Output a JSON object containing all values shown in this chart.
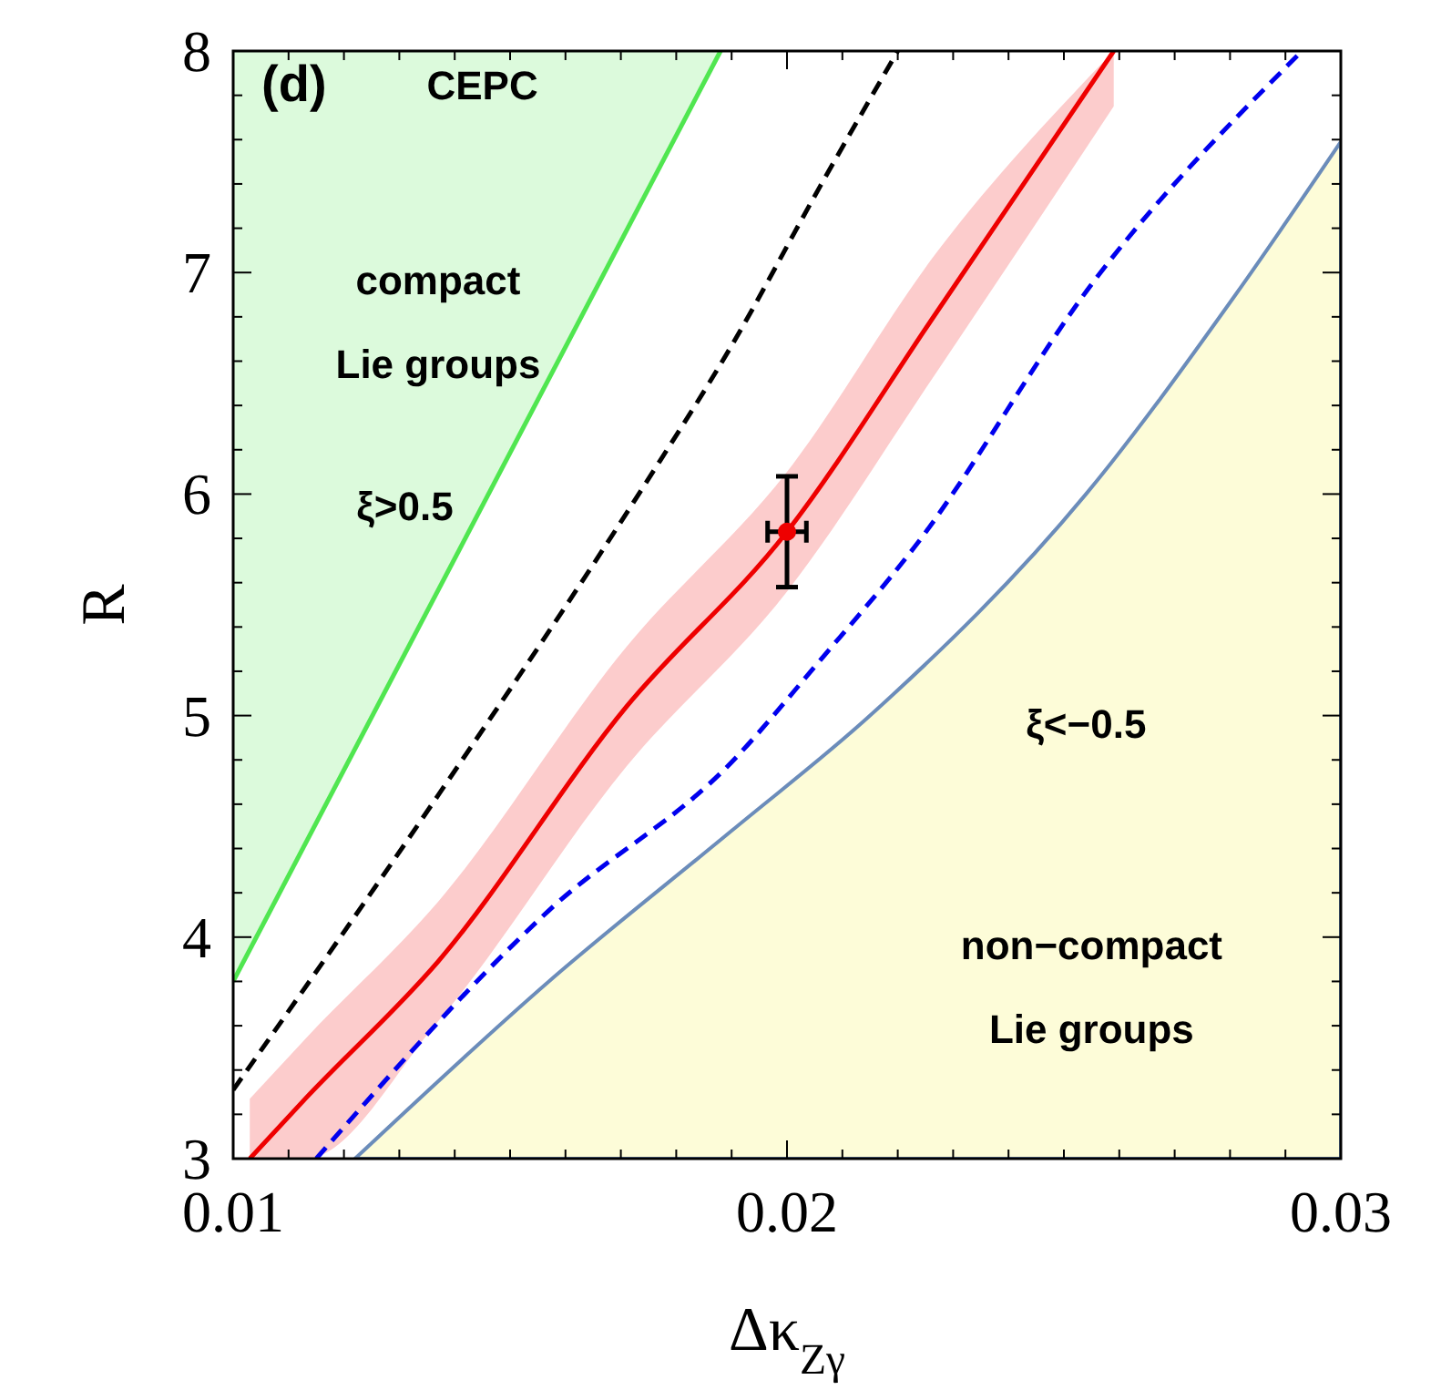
{
  "chart_data": {
    "type": "line",
    "xlabel": "Δκ$_{Zγ}$",
    "ylabel": "R",
    "xlim": [
      0.01,
      0.03
    ],
    "ylim": [
      3,
      8
    ],
    "xticks": [
      0.01,
      {
        "value": 0.011,
        "label": null
      },
      {
        "value": 0.012,
        "label": null
      },
      {
        "value": 0.013,
        "label": null
      },
      {
        "value": 0.014,
        "label": null
      },
      {
        "value": 0.015,
        "label": null
      },
      {
        "value": 0.016,
        "label": null
      },
      {
        "value": 0.017,
        "label": null
      },
      {
        "value": 0.018,
        "label": null
      },
      {
        "value": 0.019,
        "label": null
      },
      0.02,
      {
        "value": 0.021,
        "label": null
      },
      {
        "value": 0.022,
        "label": null
      },
      {
        "value": 0.023,
        "label": null
      },
      {
        "value": 0.024,
        "label": null
      },
      {
        "value": 0.025,
        "label": null
      },
      {
        "value": 0.026,
        "label": null
      },
      {
        "value": 0.027,
        "label": null
      },
      {
        "value": 0.028,
        "label": null
      },
      {
        "value": 0.029,
        "label": null
      },
      0.03
    ],
    "yticks": [
      3,
      {
        "value": 3.2,
        "label": null
      },
      {
        "value": 3.4,
        "label": null
      },
      {
        "value": 3.6,
        "label": null
      },
      {
        "value": 3.8,
        "label": null
      },
      4,
      {
        "value": 4.2,
        "label": null
      },
      {
        "value": 4.4,
        "label": null
      },
      {
        "value": 4.6,
        "label": null
      },
      {
        "value": 4.8,
        "label": null
      },
      5,
      {
        "value": 5.2,
        "label": null
      },
      {
        "value": 5.4,
        "label": null
      },
      {
        "value": 5.6,
        "label": null
      },
      {
        "value": 5.8,
        "label": null
      },
      6,
      {
        "value": 6.2,
        "label": null
      },
      {
        "value": 6.4,
        "label": null
      },
      {
        "value": 6.6,
        "label": null
      },
      {
        "value": 6.8,
        "label": null
      },
      7,
      {
        "value": 7.2,
        "label": null
      },
      {
        "value": 7.4,
        "label": null
      },
      {
        "value": 7.6,
        "label": null
      },
      {
        "value": 7.8,
        "label": null
      },
      8
    ],
    "series": [
      {
        "color": "#50e650",
        "line_style": "solid",
        "x": [
          0.01,
          0.0188
        ],
        "values": [
          3.8,
          8
        ],
        "lower": [
          3.8,
          8
        ],
        "upper": [
          8,
          8
        ]
      },
      {
        "type": "area",
        "color": "#fdfcd8",
        "line_style": "solid",
        "x": [
          0.0122,
          0.0157,
          0.019,
          0.0215,
          0.0254,
          0.0281,
          0.03
        ],
        "values": [
          3,
          3.8,
          4.48,
          5.0,
          6.0,
          6.9,
          7.59
        ]
      },
      {
        "color": "#000000",
        "line_style": "dashed",
        "x": [
          0.01,
          0.0137,
          0.0174,
          0.019,
          0.0206,
          0.022
        ],
        "values": [
          3.31,
          4.64,
          6.03,
          6.67,
          7.39,
          8
        ]
      },
      {
        "color": "#0000ee",
        "line_style": "dashed",
        "x": [
          0.0115,
          0.0157,
          0.019,
          0.0206,
          0.0223,
          0.0256,
          0.0293
        ],
        "values": [
          3,
          4.12,
          4.79,
          5.25,
          5.76,
          6.98,
          8
        ]
      },
      {
        "color": "#ee0000",
        "line_style": "solid",
        "x": [
          0.0103,
          0.0113,
          0.0137,
          0.0171,
          0.02,
          0.0227,
          0.0259
        ],
        "values": [
          3,
          3.27,
          3.89,
          5.04,
          5.83,
          6.82,
          8
        ],
        "lower": [
          3,
          3,
          3.62,
          4.77,
          5.56,
          6.55,
          7.75
        ],
        "upper": [
          3.27,
          3.54,
          4.16,
          5.31,
          6.1,
          7.09,
          8
        ]
      },
      {
        "type": "scatter",
        "color": "#ee0000",
        "marker": "circle",
        "x": [
          0.02
        ],
        "values": [
          5.83
        ],
        "errors": [
          0.25
        ],
        "xerrors": [
          0.00035
        ]
      }
    ],
    "annotations": [
      "(d)",
      "CEPC",
      "compact\nLie groups",
      "ξ>0.5",
      "ξ<−0.5",
      "non−compact\nLie groups"
    ]
  }
}
